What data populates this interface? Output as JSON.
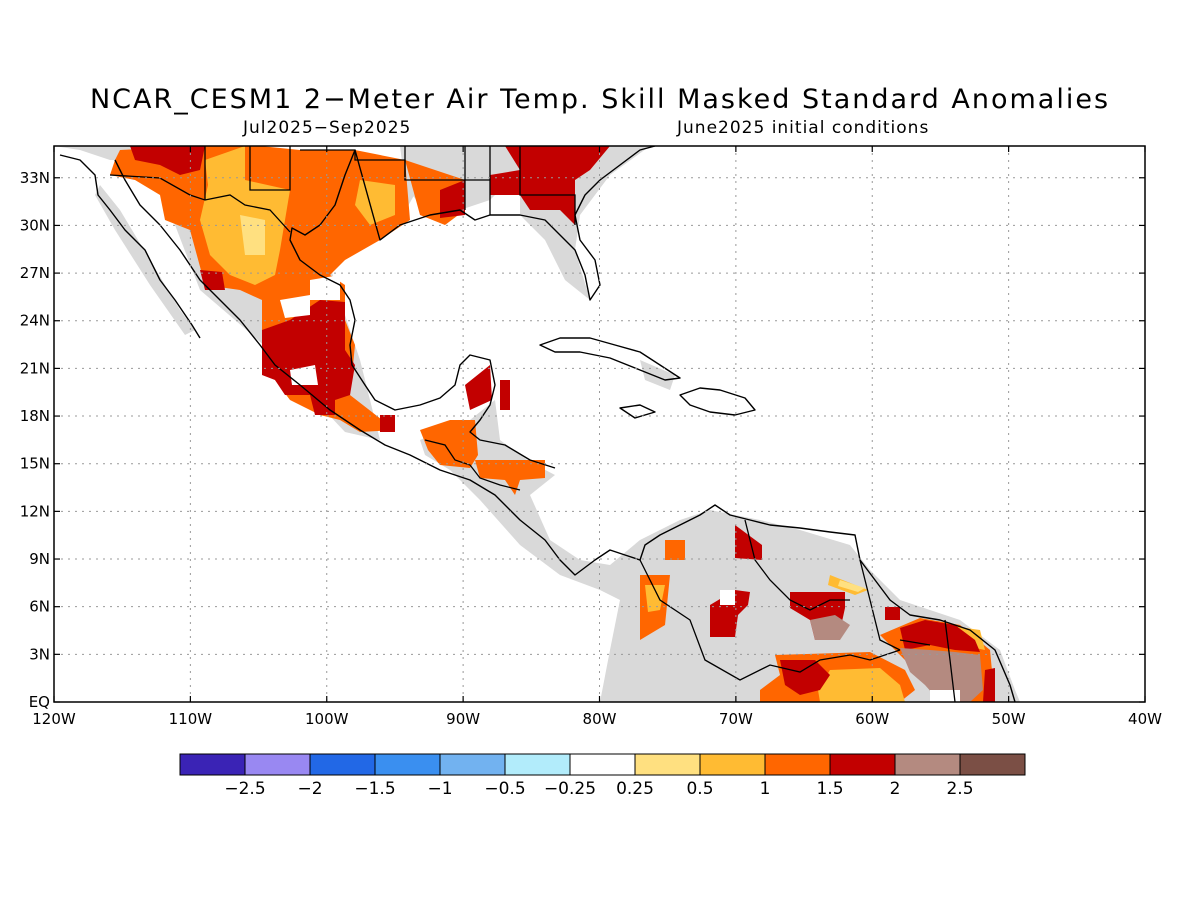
{
  "title": "NCAR_CESM1 2−Meter Air Temp. Skill Masked Standard Anomalies",
  "subtitle_period": "Jul2025−Sep2025",
  "subtitle_init": "June2025 initial conditions",
  "map": {
    "lon_range": [
      -120,
      -40
    ],
    "lat_range": [
      0,
      35
    ],
    "lon_ticks": [
      {
        "value": -120,
        "label": "120W"
      },
      {
        "value": -110,
        "label": "110W"
      },
      {
        "value": -100,
        "label": "100W"
      },
      {
        "value": -90,
        "label": "90W"
      },
      {
        "value": -80,
        "label": "80W"
      },
      {
        "value": -70,
        "label": "70W"
      },
      {
        "value": -60,
        "label": "60W"
      },
      {
        "value": -50,
        "label": "50W"
      },
      {
        "value": -40,
        "label": "40W"
      }
    ],
    "lat_ticks": [
      {
        "value": 0,
        "label": "EQ"
      },
      {
        "value": 3,
        "label": "3N"
      },
      {
        "value": 6,
        "label": "6N"
      },
      {
        "value": 9,
        "label": "9N"
      },
      {
        "value": 12,
        "label": "12N"
      },
      {
        "value": 15,
        "label": "15N"
      },
      {
        "value": 18,
        "label": "18N"
      },
      {
        "value": 21,
        "label": "21N"
      },
      {
        "value": 24,
        "label": "24N"
      },
      {
        "value": 27,
        "label": "27N"
      },
      {
        "value": 30,
        "label": "30N"
      },
      {
        "value": 33,
        "label": "33N"
      }
    ],
    "grid": "dotted",
    "land_masked_color": "#d9d9d9",
    "anomaly_regions": [
      {
        "name": "northwest-mexico-us-southwest",
        "level": "1 to 1.5",
        "color": "#ff6600"
      },
      {
        "name": "sonora-arizona",
        "level": "1.5 to 2",
        "color": "#c20000"
      },
      {
        "name": "chihuahua-core",
        "level": "0.5 to 1",
        "color": "#ffbb33"
      },
      {
        "name": "central-mexico",
        "level": "1.5 to 2",
        "color": "#c20000"
      },
      {
        "name": "gulf-coast-east-texas",
        "level": "1 to 1.5",
        "color": "#ff6600"
      },
      {
        "name": "southeast-us",
        "level": "1.5 to 2",
        "color": "#c20000"
      },
      {
        "name": "southern-mexico",
        "level": "1 to 1.5",
        "color": "#ff6600"
      },
      {
        "name": "yucatan-belize",
        "level": "1.5 to 2",
        "color": "#c20000"
      },
      {
        "name": "honduras",
        "level": "1 to 1.5",
        "color": "#ff6600"
      },
      {
        "name": "colombia-west",
        "level": "1 to 1.5",
        "color": "#ff6600"
      },
      {
        "name": "venezuela-spots",
        "level": "1.5 to 2",
        "color": "#c20000"
      },
      {
        "name": "guiana-shield",
        "level": "1.5 to 2",
        "color": "#c20000"
      },
      {
        "name": "suriname-french-guiana",
        "level": "2 to 2.5",
        "color": "#b48a80"
      },
      {
        "name": "amazon-north",
        "level": "0.5 to 1",
        "color": "#ffbb33"
      }
    ]
  },
  "colorbar": {
    "colors": [
      "#3a23b5",
      "#9988f2",
      "#2268e6",
      "#3a8ff0",
      "#72b2f0",
      "#b2ecfb",
      "#ffffff",
      "#ffe080",
      "#ffbb33",
      "#ff6600",
      "#c20000",
      "#b48a80",
      "#7b4f45"
    ],
    "labels": [
      "−2.5",
      "−2",
      "−1.5",
      "−1",
      "−0.5",
      "−0.25",
      "0.25",
      "0.5",
      "1",
      "1.5",
      "2",
      "2.5"
    ]
  }
}
